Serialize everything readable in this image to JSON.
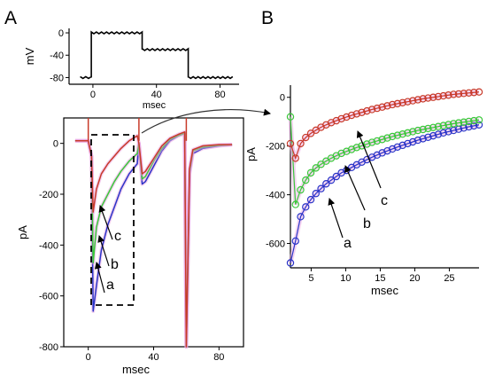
{
  "chart_data": [
    {
      "panel": "A",
      "type": "line",
      "xlabel": "msec",
      "ylabel": "mV",
      "xticks": [
        "0",
        "40",
        "80"
      ],
      "yticks": [
        "0",
        "-40",
        "-80"
      ],
      "xlim": [
        -15,
        92
      ],
      "ylim": [
        -92,
        8
      ],
      "series": [
        {
          "x": [
            -8,
            -1,
            -1,
            31,
            31,
            60,
            60,
            88
          ],
          "values": [
            -80,
            -80,
            0,
            0,
            -30,
            -30,
            -80,
            -80
          ]
        }
      ]
    },
    {
      "panel": "A",
      "type": "line",
      "xlabel": "msec",
      "ylabel": "pA",
      "xticks": [
        "0",
        "40",
        "80"
      ],
      "yticks": [
        "0",
        "-200",
        "-400",
        "-600",
        "-800"
      ],
      "xlim": [
        -15,
        95
      ],
      "ylim": [
        -800,
        100
      ],
      "annotations": [
        "a",
        "b",
        "c"
      ],
      "series": [
        {
          "color": "#2a35c8",
          "x": [
            -8,
            0,
            2,
            3,
            5,
            8,
            12,
            16,
            20,
            25,
            30,
            31,
            33,
            35,
            40,
            45,
            50,
            55,
            59,
            60,
            62,
            64,
            70,
            80,
            88
          ],
          "values": [
            10,
            10,
            -50,
            -660,
            -560,
            -420,
            -320,
            -250,
            -180,
            -120,
            -80,
            0,
            -160,
            -150,
            -90,
            -30,
            10,
            30,
            40,
            -800,
            -120,
            -40,
            -20,
            -10,
            -5
          ]
        },
        {
          "color": "#3ac83a",
          "x": [
            -8,
            0,
            2,
            3,
            5,
            8,
            12,
            16,
            20,
            25,
            30,
            31,
            33,
            35,
            40,
            45,
            50,
            55,
            59,
            60,
            62,
            64,
            70,
            80,
            88
          ],
          "values": [
            10,
            10,
            -50,
            -470,
            -330,
            -250,
            -200,
            -150,
            -110,
            -70,
            -40,
            0,
            -140,
            -130,
            -70,
            -20,
            15,
            30,
            40,
            -800,
            -110,
            -30,
            -15,
            -8,
            -5
          ]
        },
        {
          "color": "#c83a2a",
          "x": [
            -8,
            0,
            2,
            3,
            5,
            8,
            12,
            16,
            20,
            25,
            30,
            31,
            33,
            35,
            40,
            45,
            50,
            55,
            59,
            60,
            62,
            64,
            70,
            80,
            88
          ],
          "values": [
            10,
            10,
            -50,
            -270,
            -180,
            -120,
            -80,
            -50,
            -20,
            10,
            30,
            0,
            -120,
            -110,
            -60,
            -10,
            20,
            35,
            45,
            -800,
            -100,
            -25,
            -10,
            -5,
            -5
          ]
        }
      ]
    },
    {
      "panel": "B",
      "type": "scatter",
      "xlabel": "msec",
      "ylabel": "pA",
      "xticks": [
        "5",
        "10",
        "15",
        "20",
        "25"
      ],
      "yticks": [
        "0",
        "-200",
        "-400",
        "-600"
      ],
      "xlim": [
        2,
        29.3
      ],
      "ylim": [
        -700,
        50
      ],
      "annotations": [
        "a",
        "b",
        "c"
      ],
      "series": [
        {
          "color": "#2a35c8",
          "values": [
            -680,
            -590,
            -490,
            -450,
            -420,
            -395,
            -375,
            -355,
            -340,
            -325,
            -310,
            -300,
            -288,
            -277,
            -266,
            -256,
            -246,
            -237,
            -228,
            -220,
            -212,
            -204,
            -197,
            -190,
            -183,
            -176,
            -170,
            -164,
            -158,
            -152,
            -146,
            -141,
            -136,
            -131,
            -126,
            -121,
            -117,
            -113
          ]
        },
        {
          "color": "#3ac83a",
          "values": [
            -80,
            -440,
            -380,
            -340,
            -310,
            -290,
            -275,
            -262,
            -250,
            -240,
            -230,
            -222,
            -214,
            -206,
            -199,
            -192,
            -185,
            -179,
            -173,
            -167,
            -161,
            -156,
            -151,
            -146,
            -141,
            -136,
            -132,
            -128,
            -124,
            -120,
            -116,
            -112,
            -108,
            -105,
            -102,
            -99,
            -96,
            -93
          ]
        },
        {
          "color": "#c83a2a",
          "values": [
            -190,
            -250,
            -190,
            -165,
            -148,
            -135,
            -123,
            -113,
            -104,
            -96,
            -88,
            -81,
            -74,
            -68,
            -62,
            -56,
            -50,
            -45,
            -40,
            -35,
            -30,
            -26,
            -22,
            -18,
            -14,
            -10,
            -6,
            -3,
            0,
            3,
            6,
            9,
            12,
            14,
            16,
            18,
            20,
            22
          ]
        }
      ]
    }
  ],
  "labels": {
    "panel_a": "A",
    "panel_b": "B",
    "a": "a",
    "b": "b",
    "c": "c"
  }
}
